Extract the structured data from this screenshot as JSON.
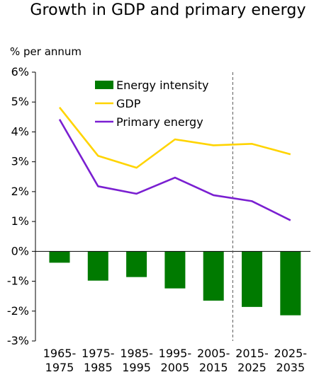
{
  "chart_data": {
    "type": "bar+line",
    "title": "Growth in GDP and primary energy",
    "ylabel": "% per annum",
    "ylim": [
      -3,
      6
    ],
    "yticks": [
      6,
      5,
      4,
      3,
      2,
      1,
      0,
      -1,
      -2,
      -3
    ],
    "ytick_labels": [
      "6%",
      "5%",
      "4%",
      "3%",
      "2%",
      "1%",
      "0%",
      "-1%",
      "-2%",
      "-3%"
    ],
    "categories": [
      [
        "1965-",
        "1975"
      ],
      [
        "1975-",
        "1985"
      ],
      [
        "1985-",
        "1995"
      ],
      [
        "1995-",
        "2005"
      ],
      [
        "2005-",
        "2015"
      ],
      [
        "2015-",
        "2025"
      ],
      [
        "2025-",
        "2035"
      ]
    ],
    "series": [
      {
        "name": "Energy intensity",
        "kind": "bar",
        "color": "#007a00",
        "values": [
          -0.38,
          -0.98,
          -0.86,
          -1.24,
          -1.65,
          -1.86,
          -2.14
        ]
      },
      {
        "name": "GDP",
        "kind": "line",
        "color": "#ffd400",
        "values": [
          4.82,
          3.2,
          2.8,
          3.75,
          3.55,
          3.6,
          3.25
        ]
      },
      {
        "name": "Primary energy",
        "kind": "line",
        "color": "#7a1fd1",
        "values": [
          4.42,
          2.18,
          1.93,
          2.47,
          1.88,
          1.68,
          1.04
        ]
      }
    ],
    "legend_position": "top-left inside plot",
    "divider_between": [
      "2005-2015",
      "2015-2025"
    ],
    "grid": false
  }
}
